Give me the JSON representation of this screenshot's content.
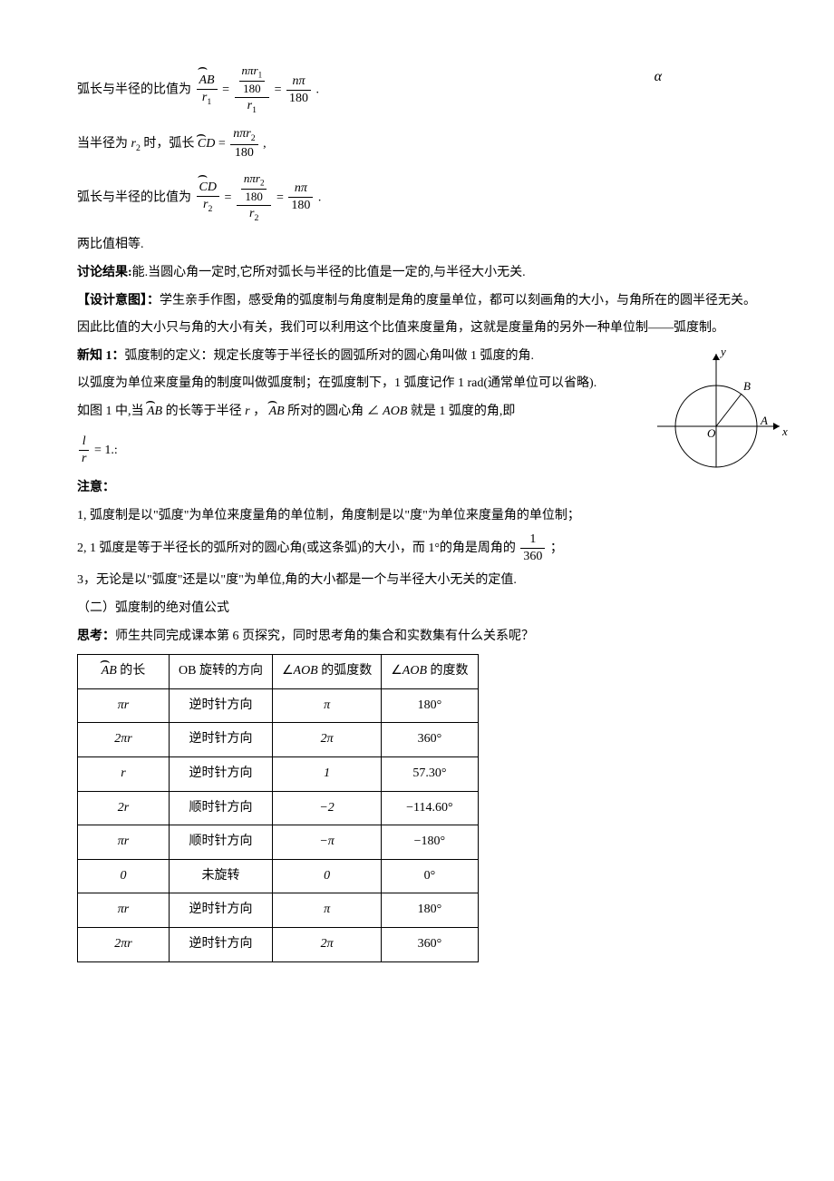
{
  "alpha_symbol": "α",
  "eq1_prefix": "弧长与半径的比值为",
  "eq1_lhs_num": "AB",
  "eq1_lhs_den_var": "r",
  "eq1_lhs_den_sub": "1",
  "eq1_mid_top_n": "nπr",
  "eq1_mid_top_sub": "1",
  "eq1_mid_top_den": "180",
  "eq1_mid_bot_var": "r",
  "eq1_mid_bot_sub": "1",
  "eq1_rhs_num": "nπ",
  "eq1_rhs_den": "180",
  "eq2_prefix": "当半径为",
  "eq2_r_var": "r",
  "eq2_r_sub": "2",
  "eq2_mid": "时，弧长",
  "eq2_arc": "CD",
  "eq2_num_n": "nπr",
  "eq2_num_sub": "2",
  "eq2_den": "180",
  "eq3_prefix": "弧长与半径的比值为",
  "eq3_lhs_num": "CD",
  "eq3_lhs_den_var": "r",
  "eq3_lhs_den_sub": "2",
  "eq3_mid_top_n": "nπr",
  "eq3_mid_top_sub": "2",
  "eq3_mid_top_den": "180",
  "eq3_mid_bot_var": "r",
  "eq3_mid_bot_sub": "2",
  "eq3_rhs_num": "nπ",
  "eq3_rhs_den": "180",
  "line_equal": "两比值相等.",
  "discuss_label": "讨论结果:",
  "discuss_text": "能.当圆心角一定时,它所对弧长与半径的比值是一定的,与半径大小无关.",
  "design_label": "【设计意图】：",
  "design_text1": "学生亲手作图，感受角的弧度制与角度制是角的度量单位，都可以刻画角的大小，与角所在的圆半径无关。",
  "therefore_text": "因此比值的大小只与角的大小有关，我们可以利用这个比值来度量角，这就是度量角的另外一种单位制——弧度制。",
  "new1_label": "新知 1：",
  "new1_text": "弧度制的定义：规定长度等于半径长的圆弧所对的圆心角叫做 1 弧度的角.",
  "new1_p2": "以弧度为单位来度量角的制度叫做弧度制；在弧度制下，1 弧度记作 1 rad(通常单位可以省略).",
  "fig_p_prefix": "如图 1 中,当 ",
  "fig_arc": "AB",
  "fig_p_mid": " 的长等于半径 ",
  "fig_r": "r",
  "fig_p_mid2": "，",
  "fig_arc2": "AB",
  "fig_p_mid3": " 所对的圆心角 ∠",
  "fig_aob": "AOB",
  "fig_p_end": " 就是 1 弧度的角,即",
  "lr_l": "l",
  "lr_r": "r",
  "lr_eq": "= 1.:",
  "note_label": "注意：",
  "note1": "1, 弧度制是以\"弧度\"为单位来度量角的单位制，角度制是以\"度\"为单位来度量角的单位制；",
  "note2a": "2, 1 弧度是等于半径长的弧所对的圆心角(或这条弧)的大小，而 1°的角是周角的",
  "note2_num": "1",
  "note2_den": "360",
  "note2b": "；",
  "note3": "3，无论是以\"弧度\"还是以\"度\"为单位,角的大小都是一个与半径大小无关的定值.",
  "section2": "（二）弧度制的绝对值公式",
  "think_label": "思考：",
  "think_text": "师生共同完成课本第 6 页探究，同时思考角的集合和实数集有什么关系呢？",
  "table": {
    "headers": {
      "c1_arc": "AB",
      "c1_suffix": " 的长",
      "c2": "OB 旋转的方向",
      "c3_prefix": "∠",
      "c3_aob": "AOB",
      "c3_suffix": " 的弧度数",
      "c4_prefix": "∠",
      "c4_aob": "AOB",
      "c4_suffix": " 的度数"
    },
    "rows": [
      {
        "len": "πr",
        "dir": "逆时针方向",
        "rad": "π",
        "deg": "180°"
      },
      {
        "len": "2πr",
        "dir": "逆时针方向",
        "rad": "2π",
        "deg": "360°"
      },
      {
        "len": "r",
        "dir": "逆时针方向",
        "rad": "1",
        "deg": "57.30°"
      },
      {
        "len": "2r",
        "dir": "顺时针方向",
        "rad": "−2",
        "deg": "−114.60°"
      },
      {
        "len": "πr",
        "dir": "顺时针方向",
        "rad": "−π",
        "deg": "−180°"
      },
      {
        "len": "0",
        "dir": "未旋转",
        "rad": "0",
        "deg": "0°"
      },
      {
        "len": "πr",
        "dir": "逆时针方向",
        "rad": "π",
        "deg": "180°"
      },
      {
        "len": "2πr",
        "dir": "逆时针方向",
        "rad": "2π",
        "deg": "360°"
      }
    ]
  },
  "figure": {
    "axis_x": "x",
    "axis_y": "y",
    "origin": "O",
    "pt_a": "A",
    "pt_b": "B",
    "stroke": "#000000",
    "bg": "#ffffff"
  }
}
